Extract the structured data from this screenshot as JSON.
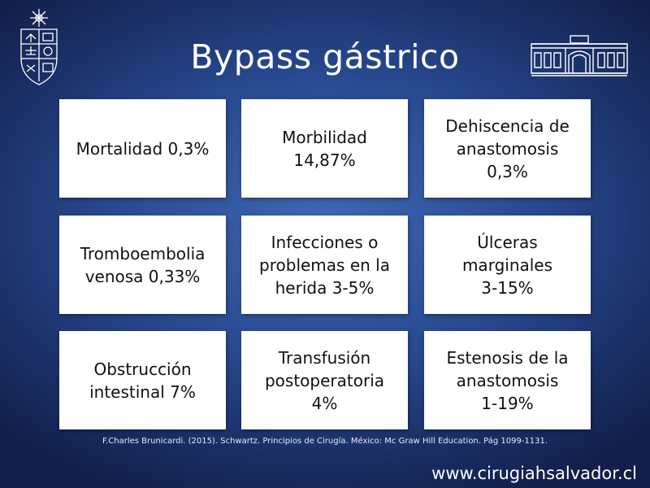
{
  "slide": {
    "title": "Bypass gástrico",
    "cells": [
      {
        "lines": [
          "Mortalidad 0,3%"
        ]
      },
      {
        "lines": [
          "Morbilidad",
          "14,87%"
        ]
      },
      {
        "lines": [
          "Dehiscencia de",
          "anastomosis",
          "0,3%"
        ]
      },
      {
        "lines": [
          "Tromboembolia",
          "venosa 0,33%"
        ]
      },
      {
        "lines": [
          "Infecciones o",
          "problemas en la",
          "herida 3-5%"
        ]
      },
      {
        "lines": [
          "Úlceras",
          "marginales",
          "3-15%"
        ]
      },
      {
        "lines": [
          "Obstrucción",
          "intestinal 7%"
        ]
      },
      {
        "lines": [
          "Transfusión",
          "postoperatoria",
          "4%"
        ]
      },
      {
        "lines": [
          "Estenosis de la",
          "anastomosis",
          "1-19%"
        ]
      }
    ],
    "citation": "F.Charles Brunicardi. (2015). Schwartz. Principios de Cirugía. México: Mc Graw Hill Education. Pág 1099-1131.",
    "website": "www.cirugiahsalvador.cl"
  },
  "icons": {
    "left_logo": "university-crest-icon",
    "right_logo": "hospital-building-icon"
  },
  "colors": {
    "background": "#28498f",
    "cell": "#ffffff",
    "text": "#111111"
  }
}
